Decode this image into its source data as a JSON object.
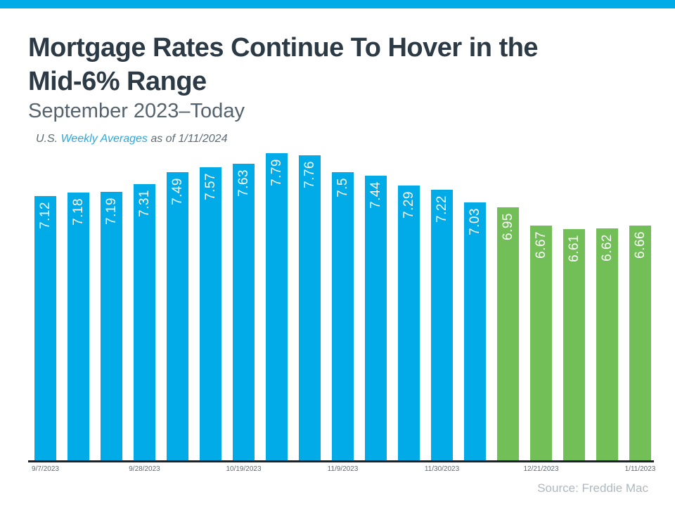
{
  "page": {
    "accent_bar_color": "#00ABE8"
  },
  "header": {
    "title_line1": "Mortgage Rates Continue To Hover in the",
    "title_line2": "Mid-6% Range",
    "subtitle": "September 2023–Today",
    "note": {
      "prefix": "U.S. ",
      "link_text": "Weekly Averages",
      "suffix": " as of 1/11/2024",
      "link_color": "#29A9E2"
    }
  },
  "chart_data": {
    "type": "bar",
    "title": "Mortgage Rates Continue To Hover in the Mid-6% Range",
    "subtitle": "September 2023–Today",
    "bars": [
      {
        "label": "7.12",
        "value": 7.12,
        "color": "blue"
      },
      {
        "label": "7.18",
        "value": 7.18,
        "color": "blue"
      },
      {
        "label": "7.19",
        "value": 7.19,
        "color": "blue"
      },
      {
        "label": "7.31",
        "value": 7.31,
        "color": "blue"
      },
      {
        "label": "7.49",
        "value": 7.49,
        "color": "blue"
      },
      {
        "label": "7.57",
        "value": 7.57,
        "color": "blue"
      },
      {
        "label": "7.63",
        "value": 7.63,
        "color": "blue"
      },
      {
        "label": "7.79",
        "value": 7.79,
        "color": "blue"
      },
      {
        "label": "7.76",
        "value": 7.76,
        "color": "blue"
      },
      {
        "label": "7.5",
        "value": 7.5,
        "color": "blue"
      },
      {
        "label": "7.44",
        "value": 7.44,
        "color": "blue"
      },
      {
        "label": "7.29",
        "value": 7.29,
        "color": "blue"
      },
      {
        "label": "7.22",
        "value": 7.22,
        "color": "blue"
      },
      {
        "label": "7.03",
        "value": 7.03,
        "color": "blue"
      },
      {
        "label": "6.95",
        "value": 6.95,
        "color": "green"
      },
      {
        "label": "6.67",
        "value": 6.67,
        "color": "green"
      },
      {
        "label": "6.61",
        "value": 6.61,
        "color": "green"
      },
      {
        "label": "6.62",
        "value": 6.62,
        "color": "green"
      },
      {
        "label": "6.66",
        "value": 6.66,
        "color": "green"
      }
    ],
    "palette": {
      "blue": "#00ABE8",
      "green": "#72BF58"
    },
    "value_label_color": "#FFFFFF",
    "x_tick_labels": [
      "9/7/2023",
      "9/28/2023",
      "10/19/2023",
      "11/9/2023",
      "11/30/2023",
      "12/21/2023",
      "1/11/2023"
    ],
    "x_tick_bar_indexes": [
      0,
      3,
      6,
      9,
      12,
      15,
      18
    ],
    "grid": false,
    "y_axis_visible": false,
    "legend": "none"
  },
  "footer": {
    "source": "Source: Freddie Mac"
  }
}
